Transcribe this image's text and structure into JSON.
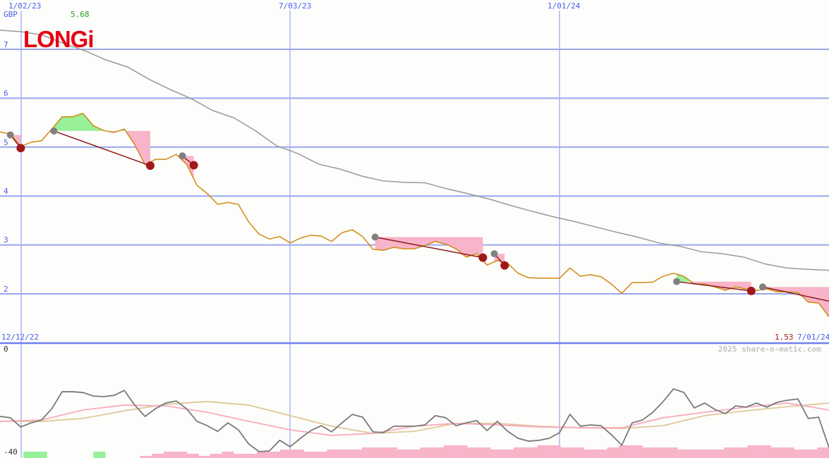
{
  "chart_data": [
    {
      "type": "line",
      "panel": "price",
      "currency": "GBP",
      "logo_text": "LONGi",
      "header_value": "5.68",
      "last_value": "1.53",
      "start_date": "12/12/22",
      "end_date": "7/01/24",
      "x_tick_labels": [
        "1/02/23",
        "7/03/23",
        "1/01/24"
      ],
      "y_tick_labels": [
        "7",
        "6",
        "5",
        "4",
        "3",
        "2"
      ],
      "ylim": [
        1.5,
        7.5
      ],
      "grid": true,
      "colors": {
        "price": "#d08a10",
        "average": "#999999",
        "trade_line": "#8b1a1a",
        "buy_marker": "#808080",
        "sell_marker": "#a01818",
        "gain_fill": "#98f098",
        "loss_fill": "#f8b4c8",
        "grid": "#9aa8f0"
      },
      "series": [
        {
          "key": "price",
          "values": [
            5.31,
            5.27,
            5.01,
            5.1,
            5.13,
            5.37,
            5.62,
            5.62,
            5.69,
            5.44,
            5.34,
            5.3,
            5.37,
            5.05,
            4.64,
            4.75,
            4.75,
            4.85,
            4.65,
            4.22,
            4.05,
            3.83,
            3.87,
            3.83,
            3.47,
            3.22,
            3.12,
            3.17,
            3.04,
            3.14,
            3.2,
            3.18,
            3.07,
            3.25,
            3.31,
            3.17,
            2.91,
            2.89,
            2.95,
            2.92,
            2.92,
            2.99,
            3.07,
            3.02,
            2.92,
            2.75,
            2.82,
            2.59,
            2.68,
            2.62,
            2.42,
            2.33,
            2.32,
            2.32,
            2.32,
            2.53,
            2.36,
            2.39,
            2.35,
            2.2,
            2.01,
            2.23,
            2.23,
            2.24,
            2.36,
            2.42,
            2.36,
            2.2,
            2.2,
            2.14,
            2.07,
            2.14,
            2.1,
            2.07,
            2.1,
            2.04,
            2.04,
            2.03,
            1.83,
            1.81,
            1.53
          ]
        },
        {
          "key": "average",
          "values": [
            7.39,
            7.36,
            7.29,
            7.12,
            6.97,
            6.78,
            6.64,
            6.39,
            6.18,
            5.99,
            5.75,
            5.6,
            5.34,
            5.03,
            4.87,
            4.65,
            4.55,
            4.41,
            4.31,
            4.28,
            4.27,
            4.15,
            4.05,
            3.94,
            3.81,
            3.69,
            3.58,
            3.48,
            3.37,
            3.26,
            3.16,
            3.04,
            2.97,
            2.86,
            2.82,
            2.75,
            2.61,
            2.53,
            2.5,
            2.48
          ]
        }
      ],
      "trades": [
        {
          "buy_bar": 1,
          "buy": 5.25,
          "sell_bar": 2,
          "sell": 4.98
        },
        {
          "buy_bar": 5.2,
          "buy": 5.33,
          "sell_bar": 14.5,
          "sell": 4.62
        },
        {
          "buy_bar": 17.6,
          "buy": 4.82,
          "sell_bar": 18.7,
          "sell": 4.63
        },
        {
          "buy_bar": 36.2,
          "buy": 3.16,
          "sell_bar": 46.6,
          "sell": 2.74
        },
        {
          "buy_bar": 47.7,
          "buy": 2.82,
          "sell_bar": 48.7,
          "sell": 2.58
        },
        {
          "buy_bar": 65.3,
          "buy": 2.25,
          "sell_bar": 72.5,
          "sell": 2.06
        },
        {
          "buy_bar": 73.6,
          "buy": 2.14,
          "sell_bar": 80.9,
          "sell": 1.81
        }
      ]
    },
    {
      "type": "line",
      "panel": "oscillator",
      "y_tick_labels": [
        "0",
        "-40"
      ],
      "ylim": [
        -40,
        0
      ],
      "copyright": "2025 share-o-matic.com",
      "colors": {
        "oscillator": "#7a7a7a",
        "signal": "#f8aac0",
        "slow": "#e0c898",
        "volume_down": "#f8b4c8",
        "volume_up": "#98f098"
      },
      "series": [
        {
          "key": "oscillator",
          "values": [
            -26.3,
            -26.8,
            -30.4,
            -28.8,
            -27.7,
            -23.3,
            -16.7,
            -16.7,
            -17.0,
            -18.4,
            -18.6,
            -18.1,
            -16.2,
            -21.9,
            -26.3,
            -23.3,
            -21.1,
            -20.3,
            -23.3,
            -28.2,
            -29.9,
            -32.1,
            -28.8,
            -31.5,
            -37.0,
            -40.0,
            -39.7,
            -35.6,
            -38.1,
            -34.8,
            -31.8,
            -29.9,
            -32.3,
            -28.8,
            -25.5,
            -26.6,
            -32.3,
            -32.6,
            -30.1,
            -30.1,
            -30.1,
            -29.6,
            -26.0,
            -26.8,
            -29.9,
            -28.8,
            -27.9,
            -31.8,
            -28.2,
            -32.1,
            -34.8,
            -35.9,
            -35.6,
            -34.8,
            -32.6,
            -25.5,
            -30.1,
            -29.6,
            -29.9,
            -33.4,
            -37.5,
            -28.8,
            -27.7,
            -24.7,
            -20.5,
            -15.6,
            -17.0,
            -23.0,
            -21.1,
            -23.6,
            -25.2,
            -22.2,
            -22.7,
            -21.1,
            -22.7,
            -20.8,
            -20.0,
            -19.5,
            -27.1,
            -26.6,
            -38.4
          ]
        },
        {
          "key": "signal",
          "values": [
            -28.2,
            -27.7,
            -23.8,
            -21.9,
            -22.2,
            -24.7,
            -28.2,
            -31.5,
            -33.7,
            -32.9,
            -30.1,
            -29.0,
            -29.6,
            -30.4,
            -30.7,
            -30.7,
            -26.8,
            -24.7,
            -22.7,
            -21.1,
            -23.8
          ]
        },
        {
          "key": "slow",
          "values": [
            -28.2,
            -28.2,
            -27.1,
            -24.1,
            -21.6,
            -20.5,
            -21.9,
            -26.0,
            -30.1,
            -32.9,
            -32.1,
            -29.0,
            -29.0,
            -30.1,
            -30.7,
            -31.0,
            -29.9,
            -26.0,
            -24.1,
            -22.5,
            -21.1
          ]
        }
      ],
      "volume": [
        0,
        0,
        3,
        3,
        0,
        0,
        0,
        0,
        3,
        0,
        0,
        0,
        1,
        2,
        3,
        3,
        2,
        1,
        2,
        3,
        2,
        2,
        3,
        3,
        4,
        4,
        3,
        3,
        4,
        4,
        4,
        5,
        5,
        5,
        4,
        4,
        5,
        5,
        6,
        6,
        5,
        5,
        4,
        4,
        5,
        5,
        6,
        6,
        5,
        5,
        4,
        4,
        5,
        6,
        6,
        5,
        5,
        5,
        4,
        4,
        4,
        4,
        5,
        5,
        6,
        6,
        5,
        5,
        4,
        4,
        5
      ],
      "volume_up": [
        false,
        false,
        true,
        true,
        false,
        false,
        false,
        false,
        true,
        false,
        false,
        false,
        false,
        false,
        false,
        false,
        false,
        false,
        false,
        false,
        false,
        false,
        false,
        false,
        false,
        false,
        false,
        false,
        false,
        false,
        false,
        false,
        false,
        false,
        false,
        false,
        false,
        false,
        false,
        false,
        false,
        false,
        false,
        false,
        false,
        false,
        false,
        false,
        false,
        false,
        false,
        false,
        false,
        false,
        false,
        false,
        false,
        false,
        false,
        false,
        false,
        false,
        false,
        false,
        false,
        false,
        false,
        false,
        false,
        false,
        false
      ]
    }
  ]
}
